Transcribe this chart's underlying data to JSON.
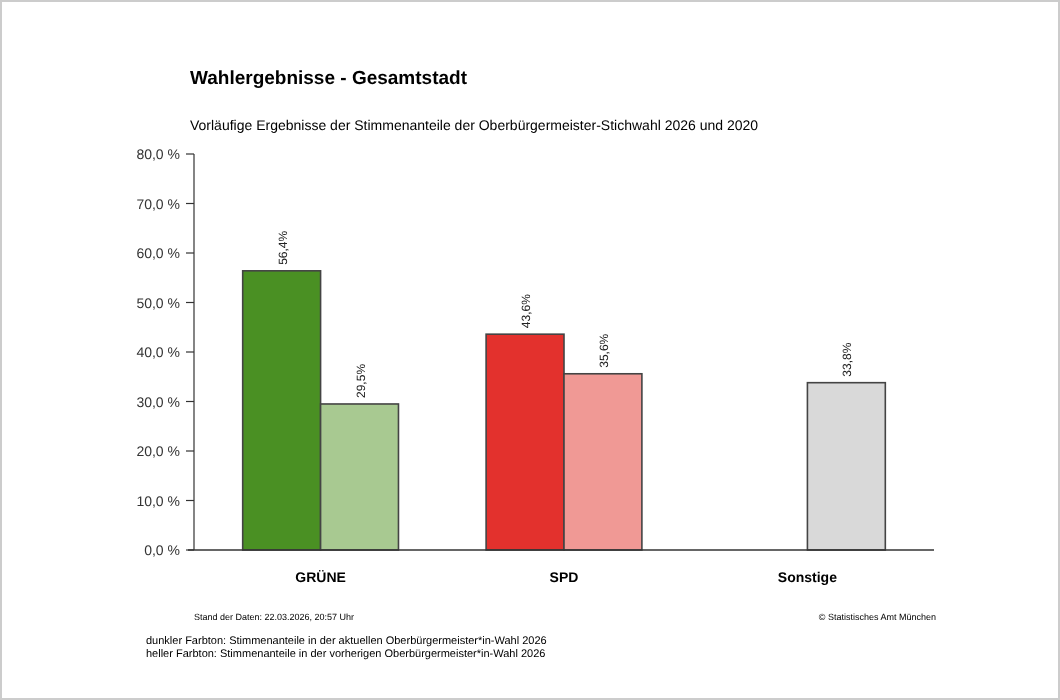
{
  "chart_data": {
    "type": "bar",
    "title": "Wahlergebnisse - Gesamtstadt",
    "subtitle": "Vorläufige Ergebnisse der Stimmenanteile der Oberbürgermeister-Stichwahl 2026 und 2020",
    "categories": [
      "GRÜNE",
      "SPD",
      "Sonstige"
    ],
    "series": [
      {
        "colors": [
          "#4a9023",
          "#e3312d",
          null
        ],
        "values": [
          56.4,
          43.6,
          null
        ],
        "value_labels": [
          "56,4%",
          "43,6%",
          null
        ]
      },
      {
        "colors": [
          "#a8c991",
          "#f09995",
          "#d9d9d9"
        ],
        "values": [
          29.5,
          35.6,
          33.8
        ],
        "value_labels": [
          "29,5%",
          "35,6%",
          "33,8%"
        ]
      }
    ],
    "ylim": [
      0,
      80
    ],
    "yticks": [
      {
        "value": 0,
        "label": "0,0 %"
      },
      {
        "value": 10,
        "label": "10,0 %"
      },
      {
        "value": 20,
        "label": "20,0 %"
      },
      {
        "value": 30,
        "label": "30,0 %"
      },
      {
        "value": 40,
        "label": "40,0 %"
      },
      {
        "value": 50,
        "label": "50,0 %"
      },
      {
        "value": 60,
        "label": "60,0 %"
      },
      {
        "value": 70,
        "label": "70,0 %"
      },
      {
        "value": 80,
        "label": "80,0 %"
      }
    ],
    "grid": false,
    "annotations": [
      "Stand der Daten: 22.03.2026, 20:57 Uhr",
      "© Statistisches Amt München",
      "dunkler Farbton: Stimmenanteile in der aktuellen Oberbürgermeister*in-Wahl 2026",
      "heller Farbton: Stimmenanteile in der vorherigen Oberbürgermeister*in-Wahl 2026"
    ]
  }
}
